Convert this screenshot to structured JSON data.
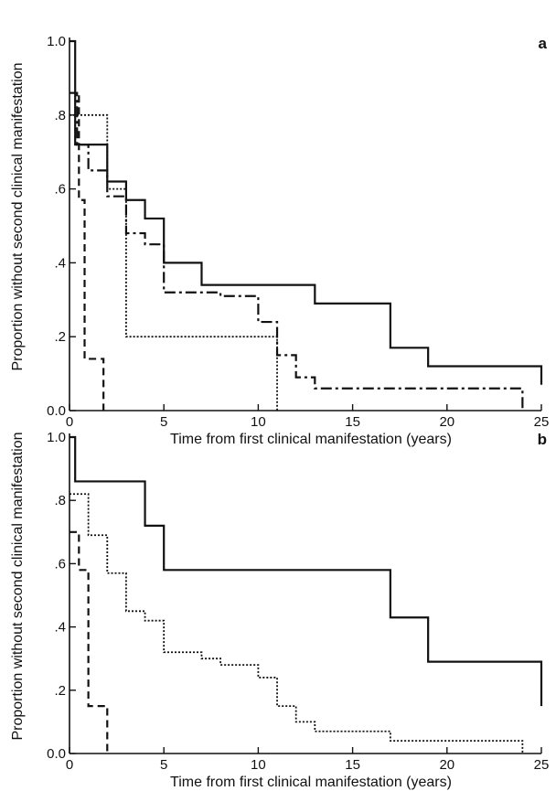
{
  "chart_data": [
    {
      "type": "line",
      "step": true,
      "panel_label": "a",
      "xlabel": "Time from first clinical manifestation (years)",
      "ylabel": "Proportion without second clinical manifestation",
      "xlim": [
        0,
        25
      ],
      "ylim": [
        0,
        1
      ],
      "xticks": [
        "0",
        "5",
        "10",
        "15",
        "20",
        "25"
      ],
      "yticks": [
        "0.0",
        ".2",
        ".4",
        ".6",
        ".8",
        "1.0"
      ],
      "grid": false,
      "series": [
        {
          "style": "solid",
          "x": [
            0,
            0.3,
            1,
            2,
            2.5,
            3,
            4,
            5,
            7,
            13,
            17,
            19,
            25
          ],
          "y": [
            1.0,
            0.72,
            0.72,
            0.62,
            0.62,
            0.57,
            0.52,
            0.4,
            0.34,
            0.29,
            0.17,
            0.12,
            0.07
          ]
        },
        {
          "style": "dash-dot",
          "x": [
            0,
            0.4,
            1,
            2,
            3,
            4,
            5,
            8,
            10,
            11,
            12,
            13,
            24
          ],
          "y": [
            0.86,
            0.72,
            0.65,
            0.58,
            0.48,
            0.45,
            0.32,
            0.31,
            0.24,
            0.15,
            0.09,
            0.06,
            0.0
          ]
        },
        {
          "style": "dotted",
          "x": [
            0,
            1,
            2,
            3,
            11
          ],
          "y": [
            0.8,
            0.8,
            0.6,
            0.2,
            0.0
          ]
        },
        {
          "style": "dashed",
          "x": [
            0,
            0.5,
            0.8,
            1.3,
            1.8
          ],
          "y": [
            0.86,
            0.57,
            0.14,
            0.14,
            0.0
          ]
        }
      ]
    },
    {
      "type": "line",
      "step": true,
      "panel_label": "b",
      "xlabel": "Time from first clinical manifestation (years)",
      "ylabel": "Proportion without second clinical manifestation",
      "xlim": [
        0,
        25
      ],
      "ylim": [
        0,
        1
      ],
      "xticks": [
        "0",
        "5",
        "10",
        "15",
        "20",
        "25"
      ],
      "yticks": [
        "0.0",
        ".2",
        ".4",
        ".6",
        ".8",
        "1.0"
      ],
      "grid": false,
      "series": [
        {
          "style": "solid",
          "x": [
            0,
            0.3,
            4,
            5,
            17,
            19,
            25
          ],
          "y": [
            1.0,
            0.86,
            0.72,
            0.58,
            0.43,
            0.29,
            0.15
          ]
        },
        {
          "style": "dotted",
          "x": [
            0,
            0.3,
            0.7,
            1,
            2,
            3,
            4,
            5,
            7,
            8,
            10,
            11,
            11.5,
            12,
            13,
            17,
            24
          ],
          "y": [
            0.82,
            0.82,
            0.82,
            0.69,
            0.57,
            0.45,
            0.42,
            0.32,
            0.3,
            0.28,
            0.24,
            0.15,
            0.15,
            0.1,
            0.07,
            0.04,
            0.0
          ]
        },
        {
          "style": "dashed",
          "x": [
            0,
            0.5,
            1,
            1.5,
            2
          ],
          "y": [
            0.7,
            0.58,
            0.15,
            0.15,
            0.0
          ]
        }
      ]
    }
  ]
}
